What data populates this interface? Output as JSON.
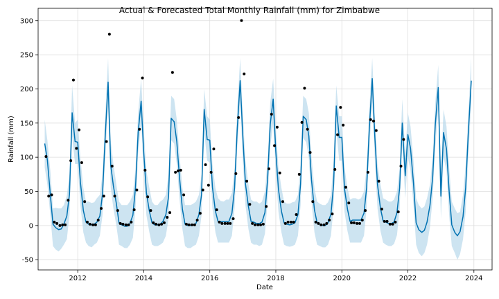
{
  "chart_data": {
    "type": "line",
    "title": "Actual & Forecasted Total Monthly Rainfall (mm) for Zimbabwe",
    "xlabel": "Date",
    "ylabel": "Rainfall (mm)",
    "xlim": [
      2010.8,
      2024.55
    ],
    "ylim": [
      -65,
      318
    ],
    "x_ticks": [
      2012,
      2014,
      2016,
      2018,
      2020,
      2022,
      2024
    ],
    "y_ticks": [
      -50,
      0,
      50,
      100,
      150,
      200,
      250,
      300
    ],
    "grid": true,
    "colors": {
      "forecast": "#0072b2",
      "interval": "#b2d6ea",
      "actual": "#000000"
    },
    "series": [
      {
        "type": "scatter",
        "x": [
          2011.04,
          2011.12,
          2011.21,
          2011.29,
          2011.37,
          2011.46,
          2011.54,
          2011.62,
          2011.71,
          2011.79,
          2011.87,
          2011.96,
          2012.04,
          2012.12,
          2012.21,
          2012.29,
          2012.37,
          2012.46,
          2012.54,
          2012.62,
          2012.71,
          2012.79,
          2012.87,
          2012.96,
          2013.04,
          2013.12,
          2013.21,
          2013.29,
          2013.37,
          2013.46,
          2013.54,
          2013.62,
          2013.71,
          2013.79,
          2013.87,
          2013.96,
          2014.04,
          2014.12,
          2014.21,
          2014.29,
          2014.37,
          2014.46,
          2014.54,
          2014.62,
          2014.71,
          2014.79,
          2014.87,
          2014.96,
          2015.04,
          2015.12,
          2015.21,
          2015.29,
          2015.37,
          2015.46,
          2015.54,
          2015.62,
          2015.71,
          2015.79,
          2015.87,
          2015.96,
          2016.04,
          2016.12,
          2016.21,
          2016.29,
          2016.37,
          2016.46,
          2016.54,
          2016.62,
          2016.71,
          2016.79,
          2016.87,
          2016.96,
          2017.04,
          2017.12,
          2017.21,
          2017.29,
          2017.37,
          2017.46,
          2017.54,
          2017.62,
          2017.71,
          2017.79,
          2017.87,
          2017.96,
          2018.04,
          2018.12,
          2018.21,
          2018.29,
          2018.37,
          2018.46,
          2018.54,
          2018.62,
          2018.71,
          2018.79,
          2018.87,
          2018.96,
          2019.04,
          2019.12,
          2019.21,
          2019.29,
          2019.37,
          2019.46,
          2019.54,
          2019.62,
          2019.71,
          2019.79,
          2019.87,
          2019.96,
          2020.04,
          2020.12,
          2020.21,
          2020.29,
          2020.37,
          2020.46,
          2020.54,
          2020.62,
          2020.71,
          2020.79,
          2020.87,
          2020.96,
          2021.04,
          2021.12,
          2021.21,
          2021.29,
          2021.37,
          2021.46,
          2021.54,
          2021.62,
          2021.71,
          2021.79,
          2021.87
        ],
        "y": [
          101,
          43,
          45,
          5,
          3,
          0,
          1,
          1,
          37,
          95,
          213,
          113,
          140,
          92,
          35,
          5,
          2,
          1,
          1,
          8,
          25,
          43,
          123,
          280,
          87,
          43,
          22,
          3,
          2,
          1,
          1,
          5,
          23,
          52,
          141,
          216,
          81,
          42,
          22,
          4,
          2,
          1,
          2,
          4,
          12,
          19,
          224,
          78,
          80,
          81,
          45,
          2,
          1,
          1,
          1,
          8,
          18,
          52,
          89,
          59,
          78,
          112,
          23,
          5,
          3,
          3,
          3,
          3,
          10,
          76,
          158,
          300,
          222,
          65,
          31,
          3,
          1,
          1,
          1,
          2,
          28,
          83,
          163,
          117,
          144,
          77,
          35,
          3,
          5,
          5,
          5,
          16,
          75,
          151,
          201,
          141,
          107,
          35,
          5,
          3,
          1,
          1,
          3,
          8,
          17,
          82,
          133,
          173,
          147,
          56,
          33,
          4,
          4,
          3,
          3,
          8,
          22,
          78,
          155,
          153,
          139,
          65,
          24,
          6,
          6,
          2,
          2,
          5,
          20,
          87,
          126
        ]
      },
      {
        "type": "line",
        "x": [
          2011.0,
          2011.08,
          2011.17,
          2011.25,
          2011.33,
          2011.42,
          2011.5,
          2011.58,
          2011.67,
          2011.75,
          2011.83,
          2011.92,
          2012.0,
          2012.08,
          2012.17,
          2012.25,
          2012.33,
          2012.42,
          2012.5,
          2012.58,
          2012.67,
          2012.75,
          2012.83,
          2012.92,
          2013.0,
          2013.08,
          2013.17,
          2013.25,
          2013.33,
          2013.42,
          2013.5,
          2013.58,
          2013.67,
          2013.75,
          2013.83,
          2013.92,
          2014.0,
          2014.08,
          2014.17,
          2014.25,
          2014.33,
          2014.42,
          2014.5,
          2014.58,
          2014.67,
          2014.75,
          2014.83,
          2014.92,
          2015.0,
          2015.08,
          2015.17,
          2015.25,
          2015.33,
          2015.42,
          2015.5,
          2015.58,
          2015.67,
          2015.75,
          2015.83,
          2015.92,
          2016.0,
          2016.08,
          2016.17,
          2016.25,
          2016.33,
          2016.42,
          2016.5,
          2016.58,
          2016.67,
          2016.75,
          2016.83,
          2016.92,
          2017.0,
          2017.08,
          2017.17,
          2017.25,
          2017.33,
          2017.42,
          2017.5,
          2017.58,
          2017.67,
          2017.75,
          2017.83,
          2017.92,
          2018.0,
          2018.08,
          2018.17,
          2018.25,
          2018.33,
          2018.42,
          2018.5,
          2018.58,
          2018.67,
          2018.75,
          2018.83,
          2018.92,
          2019.0,
          2019.08,
          2019.17,
          2019.25,
          2019.33,
          2019.42,
          2019.5,
          2019.58,
          2019.67,
          2019.75,
          2019.83,
          2019.92,
          2020.0,
          2020.08,
          2020.17,
          2020.25,
          2020.33,
          2020.42,
          2020.5,
          2020.58,
          2020.67,
          2020.75,
          2020.83,
          2020.92,
          2021.0,
          2021.08,
          2021.17,
          2021.25,
          2021.33,
          2021.42,
          2021.5,
          2021.58,
          2021.67,
          2021.75,
          2021.83,
          2021.92,
          2022.0,
          2022.08,
          2022.17,
          2022.25,
          2022.33,
          2022.42,
          2022.5,
          2022.58,
          2022.67,
          2022.75,
          2022.83,
          2022.92,
          2023.0,
          2023.08,
          2023.17,
          2023.25,
          2023.33,
          2023.42,
          2023.5,
          2023.58,
          2023.67,
          2023.75,
          2023.83,
          2023.92
        ],
        "y": [
          120,
          96,
          45,
          2,
          -3,
          -6,
          -5,
          2,
          14,
          46,
          165,
          123,
          122,
          64,
          22,
          5,
          2,
          1,
          2,
          5,
          14,
          46,
          128,
          210,
          88,
          58,
          32,
          4,
          1,
          -1,
          -1,
          3,
          15,
          56,
          136,
          182,
          106,
          48,
          21,
          4,
          1,
          1,
          2,
          6,
          16,
          42,
          157,
          152,
          123,
          72,
          24,
          2,
          0,
          0,
          1,
          3,
          16,
          45,
          170,
          126,
          125,
          56,
          21,
          6,
          6,
          6,
          6,
          6,
          18,
          55,
          140,
          212,
          131,
          61,
          28,
          6,
          5,
          3,
          3,
          5,
          19,
          67,
          148,
          185,
          108,
          53,
          21,
          4,
          2,
          1,
          2,
          4,
          16,
          61,
          160,
          155,
          131,
          67,
          23,
          4,
          2,
          0,
          0,
          4,
          17,
          60,
          175,
          129,
          129,
          54,
          24,
          6,
          8,
          8,
          8,
          8,
          18,
          55,
          140,
          215,
          129,
          60,
          25,
          7,
          5,
          3,
          3,
          5,
          19,
          55,
          150,
          73,
          133,
          113,
          62,
          4,
          -6,
          -10,
          -7,
          5,
          30,
          70,
          148,
          202,
          43,
          136,
          112,
          50,
          1,
          -10,
          -15,
          -9,
          13,
          55,
          135,
          212
        ]
      },
      {
        "type": "interval",
        "upper": [
          155,
          125,
          80,
          25,
          26,
          25,
          25,
          30,
          44,
          75,
          205,
          150,
          155,
          100,
          55,
          35,
          35,
          33,
          34,
          40,
          45,
          75,
          160,
          245,
          125,
          90,
          60,
          35,
          30,
          30,
          30,
          35,
          45,
          85,
          165,
          215,
          140,
          80,
          55,
          35,
          30,
          30,
          35,
          38,
          45,
          75,
          190,
          185,
          155,
          105,
          55,
          30,
          30,
          30,
          32,
          35,
          45,
          75,
          200,
          160,
          155,
          90,
          55,
          40,
          36,
          35,
          38,
          38,
          48,
          85,
          170,
          245,
          165,
          95,
          60,
          38,
          35,
          35,
          32,
          35,
          50,
          95,
          180,
          215,
          140,
          85,
          55,
          35,
          32,
          32,
          34,
          35,
          45,
          95,
          190,
          185,
          165,
          100,
          55,
          35,
          32,
          30,
          30,
          34,
          45,
          95,
          205,
          160,
          160,
          85,
          55,
          38,
          40,
          40,
          38,
          40,
          50,
          85,
          170,
          245,
          160,
          90,
          60,
          40,
          38,
          35,
          35,
          38,
          50,
          85,
          185,
          105,
          165,
          145,
          95,
          40,
          30,
          25,
          28,
          40,
          60,
          100,
          180,
          235,
          75,
          170,
          145,
          85,
          35,
          25,
          18,
          20,
          45,
          88,
          165,
          245
        ],
        "lower": [
          85,
          60,
          15,
          -30,
          -35,
          -38,
          -34,
          -28,
          -20,
          15,
          130,
          90,
          90,
          30,
          -10,
          -25,
          -30,
          -32,
          -28,
          -25,
          -15,
          15,
          95,
          175,
          55,
          25,
          0,
          -28,
          -30,
          -33,
          -33,
          -28,
          -18,
          25,
          105,
          150,
          75,
          15,
          -10,
          -28,
          -30,
          -30,
          -28,
          -25,
          -15,
          10,
          125,
          120,
          90,
          40,
          -5,
          -30,
          -33,
          -33,
          -30,
          -28,
          -15,
          15,
          138,
          95,
          92,
          25,
          -10,
          -25,
          -25,
          -25,
          -25,
          -25,
          -15,
          25,
          110,
          180,
          95,
          30,
          -5,
          -25,
          -28,
          -28,
          -30,
          -28,
          -12,
          35,
          115,
          150,
          75,
          20,
          -10,
          -28,
          -30,
          -31,
          -30,
          -28,
          -15,
          30,
          128,
          122,
          98,
          35,
          -10,
          -28,
          -30,
          -32,
          -32,
          -28,
          -15,
          28,
          140,
          95,
          95,
          20,
          -8,
          -25,
          -25,
          -25,
          -25,
          -25,
          -15,
          25,
          110,
          180,
          95,
          25,
          -8,
          -25,
          -28,
          -30,
          -30,
          -27,
          -14,
          25,
          118,
          40,
          100,
          80,
          30,
          -28,
          -40,
          -45,
          -40,
          -28,
          -2,
          40,
          115,
          170,
          10,
          100,
          80,
          15,
          -30,
          -40,
          -50,
          -42,
          -20,
          20,
          100,
          180
        ]
      }
    ]
  }
}
